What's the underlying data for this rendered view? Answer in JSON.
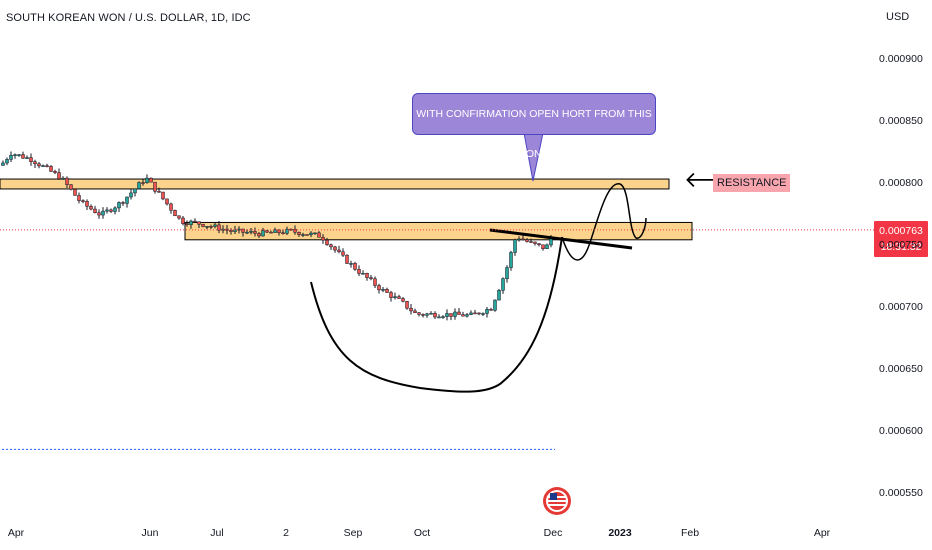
{
  "header": {
    "title": "SOUTH KOREAN WON / U.S. DOLLAR, 1D, IDC",
    "currency": "USD"
  },
  "price_badge": {
    "price": "0.000763",
    "countdown": "18:31:32",
    "color": "#f23645"
  },
  "annotations": {
    "callout": "WITH CONFIRMATION OPEN HORT FROM THIS ZONE",
    "resistance_label": "RESISTANCE",
    "arrow_icon": "left-arrow-icon",
    "flag_icon": "us-flag-icon"
  },
  "colors": {
    "up": "#26a69a",
    "down": "#ef5350",
    "zone": "#fbd38d",
    "callout": "#9c86d8",
    "label_bg": "#f8a5ad"
  },
  "chart_data": {
    "type": "candlestick",
    "title": "SOUTH KOREAN WON / U.S. DOLLAR, 1D, IDC",
    "y_axis": {
      "unit": "USD",
      "ylim": [
        0.00053,
        0.00093
      ],
      "ticks": [
        "0.000900",
        "0.000850",
        "0.000800",
        "0.000750",
        "0.000700",
        "0.000650",
        "0.000600",
        "0.000550"
      ]
    },
    "x_axis": {
      "ticks": [
        "Apr",
        "Jun",
        "Jul",
        "2",
        "Sep",
        "Oct",
        "Dec",
        "2023",
        "Feb",
        "Apr"
      ]
    },
    "last_price": 0.000763,
    "close_path": [
      [
        0,
        0.000815
      ],
      [
        10,
        0.000825
      ],
      [
        30,
        0.00082
      ],
      [
        60,
        0.000805
      ],
      [
        80,
        0.000785
      ],
      [
        100,
        0.000775
      ],
      [
        120,
        0.000785
      ],
      [
        145,
        0.000805
      ],
      [
        160,
        0.00079
      ],
      [
        180,
        0.00077
      ],
      [
        200,
        0.000768
      ],
      [
        230,
        0.000762
      ],
      [
        260,
        0.00076
      ],
      [
        290,
        0.000762
      ],
      [
        320,
        0.000758
      ],
      [
        340,
        0.000742
      ],
      [
        360,
        0.000728
      ],
      [
        380,
        0.000715
      ],
      [
        400,
        0.000705
      ],
      [
        415,
        0.000695
      ],
      [
        440,
        0.000695
      ],
      [
        470,
        0.000694
      ],
      [
        490,
        0.0007
      ],
      [
        505,
        0.00073
      ],
      [
        515,
        0.000758
      ],
      [
        530,
        0.000752
      ],
      [
        545,
        0.000748
      ],
      [
        553,
        0.000763
      ]
    ],
    "zones": [
      {
        "name": "resistance zone",
        "from": 0.000796,
        "to": 0.000804
      },
      {
        "name": "support zone",
        "from": 0.000755,
        "to": 0.000769
      }
    ],
    "dashed_line_level": 0.000586,
    "grid": false
  }
}
